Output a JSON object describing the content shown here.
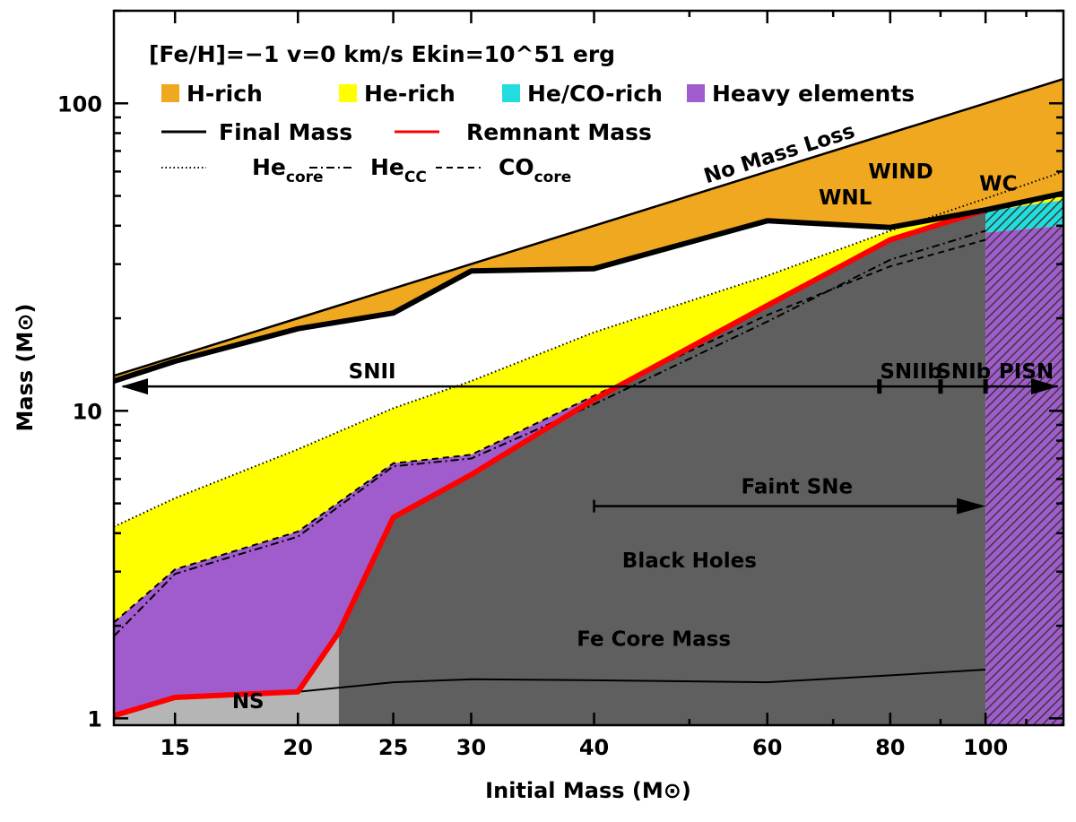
{
  "chart_data": {
    "type": "area",
    "title": "",
    "xlabel": "Initial Mass (M⊙)",
    "ylabel": "Mass (M⊙)",
    "x_scale": "log",
    "y_scale": "log",
    "xlim": [
      13,
      120
    ],
    "ylim": [
      0.95,
      200
    ],
    "x_ticks": [
      {
        "value": 15,
        "label": "15"
      },
      {
        "value": 20,
        "label": "20"
      },
      {
        "value": 25,
        "label": "25"
      },
      {
        "value": 30,
        "label": "30"
      },
      {
        "value": 40,
        "label": "40"
      },
      {
        "value": 60,
        "label": "60"
      },
      {
        "value": 80,
        "label": "80"
      },
      {
        "value": 100,
        "label": "100"
      }
    ],
    "y_ticks": [
      {
        "value": 1,
        "label": "1"
      },
      {
        "value": 10,
        "label": "10"
      },
      {
        "value": 100,
        "label": "100"
      }
    ],
    "conditions": "[Fe/H]=−1   v=0 km/s   Ekin=10^51 erg",
    "legend_fills": [
      {
        "name": "H-rich",
        "color": "#f0a820"
      },
      {
        "name": "He-rich",
        "color": "#ffff00"
      },
      {
        "name": "He/CO-rich",
        "color": "#22dddd"
      },
      {
        "name": "Heavy elements",
        "color": "#a05ccc"
      }
    ],
    "legend_lines": [
      {
        "name": "Final Mass",
        "color": "#000000",
        "style": "solid"
      },
      {
        "name": "Remnant Mass",
        "color": "#ff0000",
        "style": "solid"
      },
      {
        "name": "Hecore",
        "color": "#000000",
        "style": "dotted"
      },
      {
        "name": "HeCC",
        "color": "#000000",
        "style": "dashdot"
      },
      {
        "name": "COcore",
        "color": "#000000",
        "style": "dashed"
      }
    ],
    "series": [
      {
        "name": "No Mass Loss",
        "x": [
          13,
          15,
          20,
          25,
          30,
          40,
          60,
          80,
          100,
          120
        ],
        "y": [
          13,
          15,
          20,
          25,
          30,
          40,
          60,
          80,
          100,
          120
        ]
      },
      {
        "name": "Final Mass",
        "x": [
          13,
          15,
          20,
          25,
          30,
          40,
          60,
          80,
          100,
          120
        ],
        "y": [
          12.5,
          14.5,
          18.5,
          20.8,
          28.5,
          29,
          41.5,
          39.5,
          45,
          51
        ]
      },
      {
        "name": "He core",
        "x": [
          13,
          15,
          20,
          25,
          30,
          40,
          60,
          80,
          100,
          120
        ],
        "y": [
          4.2,
          5.2,
          7.5,
          10.2,
          12.5,
          18,
          27.5,
          38.5,
          49,
          60
        ]
      },
      {
        "name": "He CC",
        "x": [
          13,
          15,
          20,
          25,
          30,
          40,
          60,
          80,
          100
        ],
        "y": [
          1.85,
          2.95,
          3.9,
          6.6,
          7.0,
          10.5,
          19.5,
          31,
          38.5
        ]
      },
      {
        "name": "CO core",
        "x": [
          13,
          15,
          20,
          25,
          30,
          40,
          60,
          80,
          100
        ],
        "y": [
          2.05,
          3.05,
          4.05,
          6.75,
          7.2,
          11.2,
          20.5,
          29.5,
          36
        ]
      },
      {
        "name": "Remnant Mass",
        "x": [
          13,
          15,
          20,
          22,
          25,
          30,
          40,
          60,
          80,
          100
        ],
        "y": [
          1.02,
          1.17,
          1.22,
          1.9,
          4.5,
          6.2,
          10.9,
          22,
          36,
          45
        ]
      },
      {
        "name": "Fe Core Mass",
        "x": [
          13,
          15,
          20,
          25,
          30,
          40,
          60,
          80,
          100
        ],
        "y": [
          1.02,
          1.16,
          1.22,
          1.31,
          1.34,
          1.33,
          1.31,
          1.38,
          1.44
        ]
      }
    ],
    "regions": [
      {
        "name": "NS",
        "x_range": [
          13,
          22
        ]
      },
      {
        "name": "Black Holes",
        "x_range": [
          22,
          100
        ]
      },
      {
        "name": "PISN",
        "x_range": [
          100,
          120
        ]
      }
    ],
    "annotations": {
      "no_mass_loss": "No Mass Loss",
      "wind": "WIND",
      "wnl": "WNL",
      "wc": "WC",
      "snii": "SNII",
      "sniib": "SNIIb",
      "snib": "SNIb",
      "pisn": "PISN",
      "faint_sne": "Faint SNe",
      "black_holes": "Black Holes",
      "fe_core_mass": "Fe Core Mass",
      "ns": "NS"
    },
    "sn_arrow": {
      "y": 12,
      "ticks_x": [
        78,
        90,
        100
      ]
    },
    "faint_arrow": {
      "y": 4.9,
      "x_start": 40,
      "x_end": 100
    },
    "colors": {
      "h_rich": "#f0a820",
      "he_rich": "#ffff00",
      "he_co_rich": "#22dddd",
      "heavy": "#a05ccc",
      "remnant_bh": "#5f5f5f",
      "remnant_ns": "#b5b5b5",
      "remnant_line": "#ff0000",
      "pisn_label": "#ffff00"
    }
  }
}
